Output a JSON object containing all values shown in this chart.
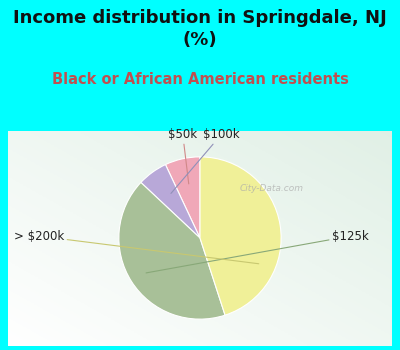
{
  "title": "Income distribution in Springdale, NJ\n(%)",
  "subtitle": "Black or African American residents",
  "labels": [
    "$50k",
    "$100k",
    "$125k",
    "> $200k"
  ],
  "values": [
    7,
    6,
    42,
    45
  ],
  "colors": [
    "#f0a8b8",
    "#b8a8d8",
    "#a8c098",
    "#f0f098"
  ],
  "background_cyan": "#00ffff",
  "background_chart_color": "#e0f0e8",
  "title_fontsize": 13,
  "subtitle_fontsize": 10.5,
  "label_fontsize": 8.5,
  "startangle": 90
}
